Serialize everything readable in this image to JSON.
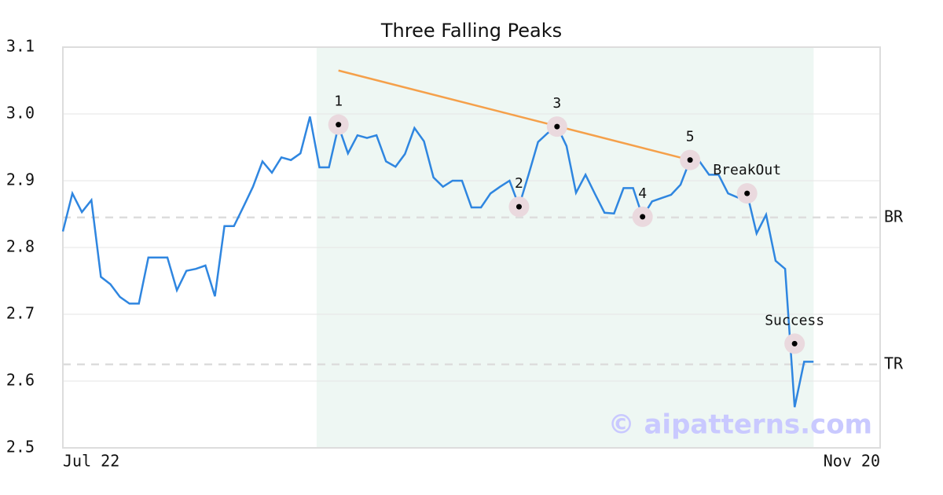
{
  "chart_data": {
    "type": "line",
    "title": "Three Falling Peaks",
    "categories": [
      "Jul 22",
      null,
      null,
      null,
      null,
      null,
      null,
      null,
      null,
      null,
      null,
      null,
      null,
      null,
      null,
      null,
      null,
      null,
      null,
      null,
      null,
      null,
      null,
      null,
      null,
      null,
      null,
      null,
      null,
      null,
      null,
      null,
      null,
      null,
      null,
      null,
      null,
      null,
      null,
      null,
      null,
      null,
      null,
      null,
      null,
      null,
      null,
      null,
      null,
      null,
      null,
      null,
      null,
      null,
      null,
      null,
      null,
      null,
      null,
      null,
      null,
      null,
      null,
      null,
      null,
      null,
      null,
      null,
      null,
      null,
      null,
      null,
      null,
      null,
      null,
      null,
      null,
      null,
      null,
      null,
      null,
      null,
      null,
      null,
      null,
      null,
      "Nov 20"
    ],
    "series": [
      {
        "color": "#2f86e0",
        "values": [
          2.824,
          2.881,
          2.853,
          2.871,
          2.756,
          2.745,
          2.726,
          2.716,
          2.716,
          2.785,
          2.785,
          2.785,
          2.736,
          2.765,
          2.768,
          2.773,
          2.727,
          2.832,
          2.832,
          2.861,
          2.891,
          2.929,
          2.912,
          2.935,
          2.931,
          2.941,
          2.996,
          2.92,
          2.92,
          2.982,
          2.941,
          2.968,
          2.964,
          2.968,
          2.929,
          2.921,
          2.94,
          2.979,
          2.959,
          2.905,
          2.891,
          2.9,
          2.9,
          2.86,
          2.86,
          2.881,
          2.891,
          2.9,
          2.862,
          2.909,
          2.958,
          2.971,
          2.982,
          2.952,
          2.882,
          2.909,
          2.88,
          2.852,
          2.851,
          2.889,
          2.889,
          2.846,
          2.869,
          2.874,
          2.879,
          2.894,
          2.931,
          2.929,
          2.909,
          2.909,
          2.881,
          2.875,
          2.881,
          2.821,
          2.849,
          2.78,
          2.768,
          2.561,
          2.629,
          2.629,
          null,
          null,
          null,
          null,
          null,
          null,
          null
        ]
      }
    ],
    "ylim": [
      2.5,
      3.1
    ],
    "yticks": [
      2.5,
      2.6,
      2.7,
      2.8,
      2.9,
      {
        "value": 3,
        "label": "3.0"
      },
      3.1
    ],
    "grid": true,
    "highlight": {
      "x": [
        26.7,
        79
      ],
      "color": "#eef7f3"
    },
    "trend_line": {
      "color": "#f5a04a",
      "x": [
        29,
        66
      ],
      "values": [
        3.065,
        2.931
      ]
    },
    "markers": {
      "x": [
        29,
        48,
        52,
        61,
        66,
        72,
        77
      ],
      "values": [
        2.984,
        2.861,
        2.981,
        2.846,
        2.931,
        2.881,
        2.656
      ],
      "labels": [
        "1",
        "2",
        "3",
        "4",
        "5",
        "BreakOut",
        "Success"
      ]
    },
    "reference_lines": [
      {
        "label": "BR",
        "value": 2.845
      },
      {
        "label": "TR",
        "value": 2.625
      }
    ],
    "watermark": "© aipatterns.com"
  }
}
